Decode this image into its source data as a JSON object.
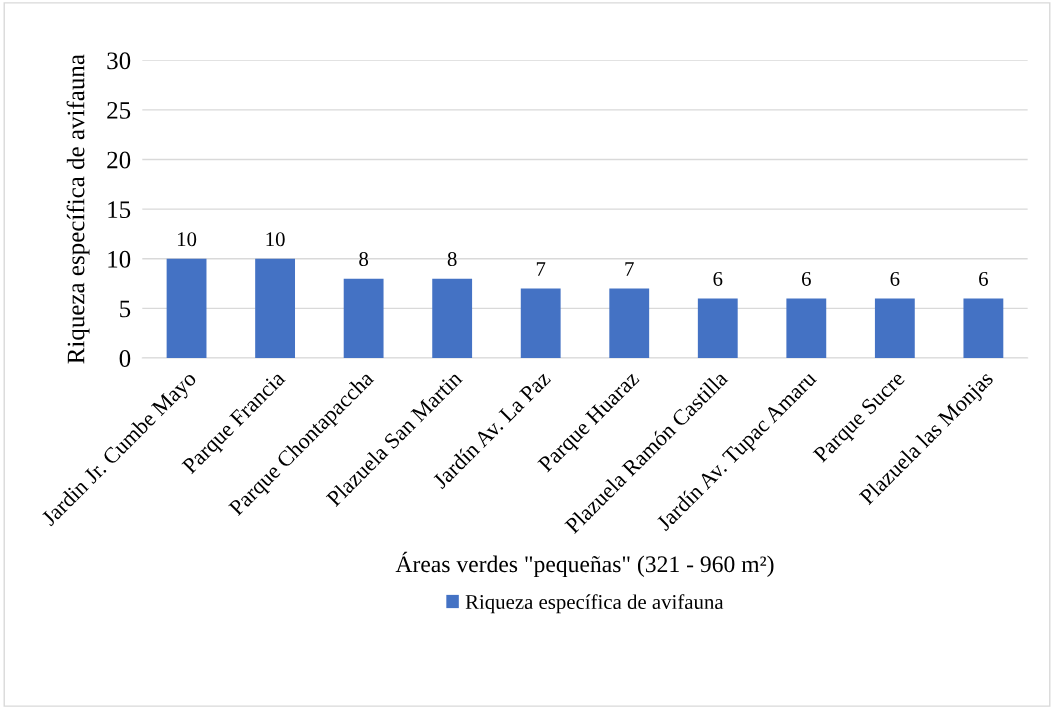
{
  "chart_data": {
    "type": "bar",
    "categories": [
      "Jardin Jr. Cumbe Mayo",
      "Parque Francia",
      "Parque Chontapaccha",
      "Plazuela San Martin",
      "Jardín Av. La Paz",
      "Parque Huaraz",
      "Plazuela Ramón Castilla",
      "Jardín Av. Tupac Amaru",
      "Parque Sucre",
      "Plazuela las Monjas"
    ],
    "series": [
      {
        "name": "Riqueza específica de avifauna",
        "color": "#4472c4",
        "values": [
          10,
          10,
          8,
          8,
          7,
          7,
          6,
          6,
          6,
          6
        ]
      }
    ],
    "xlabel": "Áreas verdes \"pequeñas\" (321 - 960 m²)",
    "ylabel": "Riqueza específica de avifauna",
    "ylim": [
      0,
      30
    ],
    "yticks": [
      0,
      5,
      10,
      15,
      20,
      25,
      30
    ],
    "grid": "y",
    "legend": "bottom",
    "data_labels": true
  }
}
